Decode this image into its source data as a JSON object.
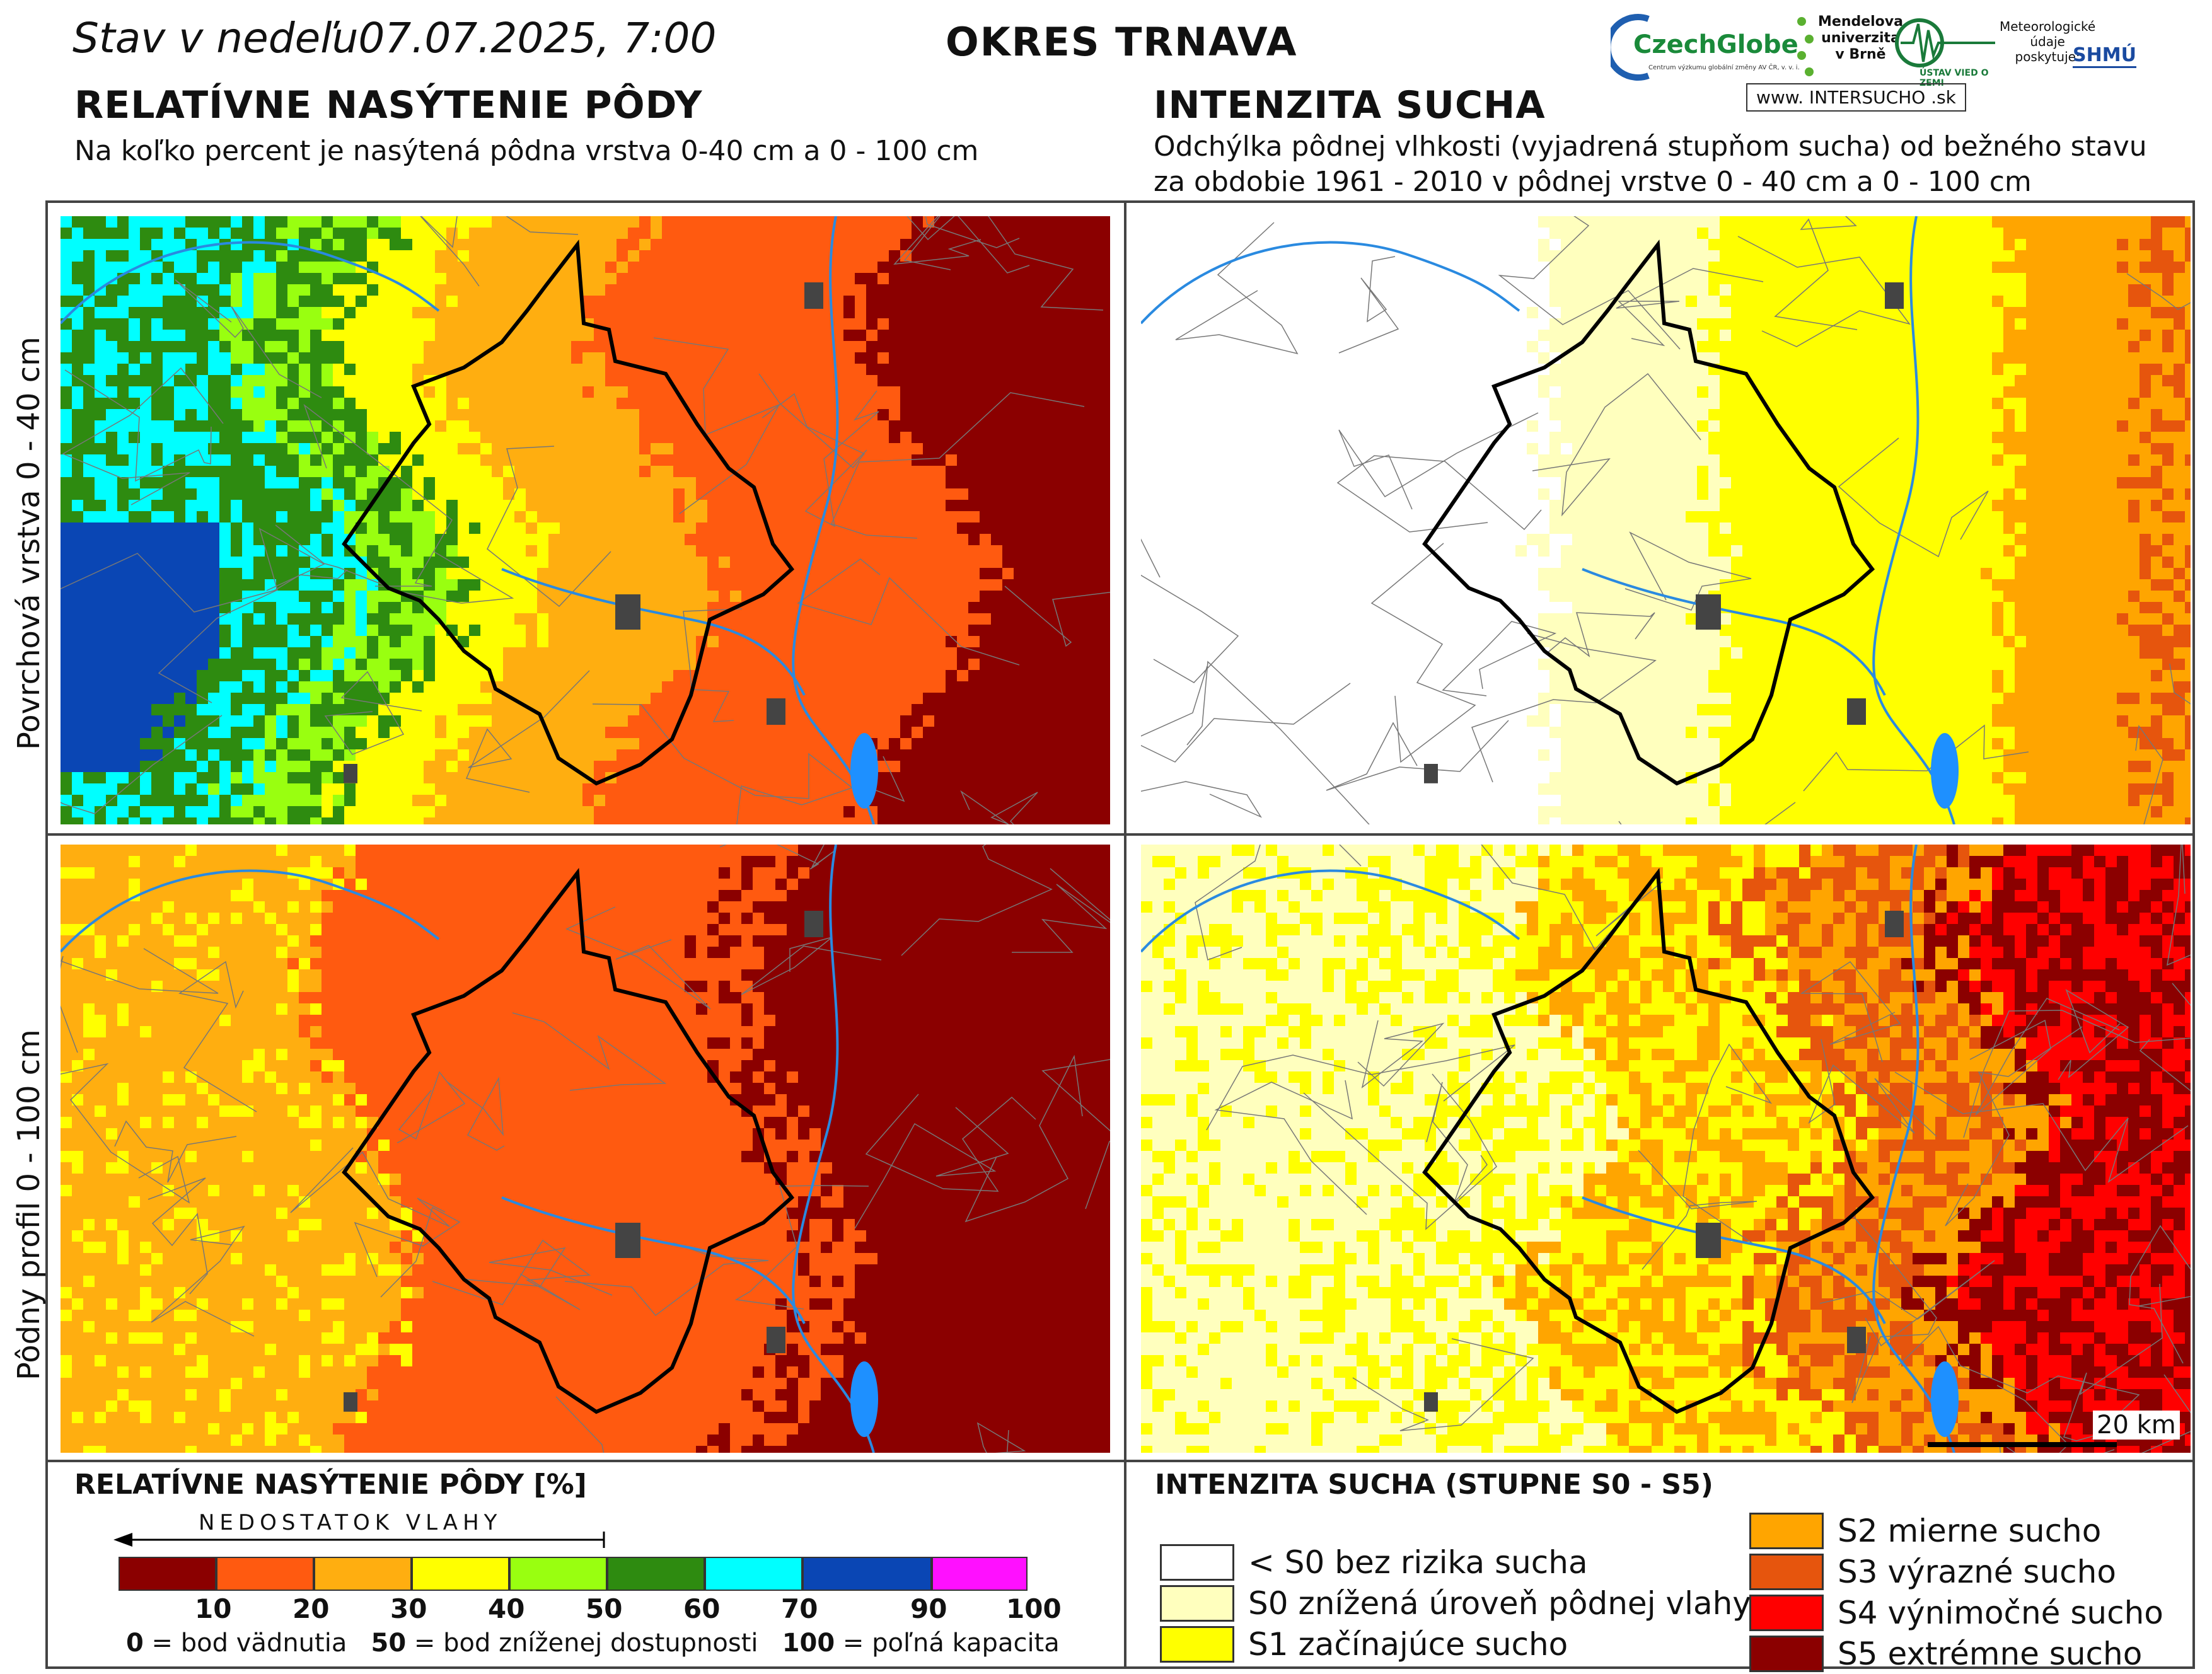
{
  "header": {
    "date_text": "Stav v nedeľu",
    "date_value": "07.07.2025, 7:00",
    "district": "OKRES  TRNAVA"
  },
  "logos": {
    "czechglobe": "CzechGlobe",
    "czechglobe_sub": "Centrum výzkumu globální změny AV ČR, v. v. i.",
    "mendel_1": "Mendelova",
    "mendel_2": "univerzita",
    "mendel_3": "v Brně",
    "uvz": "ÚSTAV VIED O ZEMI",
    "shmu_note_1": "Meteorologické",
    "shmu_note_2": "údaje",
    "shmu_note_3": "poskytuje:",
    "shmu": "SHMÚ",
    "intersucho": "www. INTERSUCHO .sk"
  },
  "left_panel": {
    "title": "RELATÍVNE NASÝTENIE PÔDY",
    "subtitle": "Na koľko percent je nasýtená pôdna vrstva 0-40 cm a 0 - 100 cm"
  },
  "right_panel": {
    "title": "INTENZITA SUCHA",
    "subtitle_1": "Odchýlka pôdnej vlhkosti (vyjadrená stupňom sucha) od bežného stavu",
    "subtitle_2": "za obdobie 1961 - 2010 v pôdnej vrstve 0 - 40 cm a 0 - 100 cm"
  },
  "row_labels": {
    "top": "Povrchová vrstva 0 - 40 cm",
    "bottom": "Pôdny profil 0 - 100 cm"
  },
  "scale_bar": "20 km",
  "saturation_legend": {
    "title": "RELATÍVNE NASÝTENIE PÔDY [%]",
    "arrow_text": "NEDOSTATOK VLAHY",
    "classes": [
      {
        "upper": "10",
        "color": "#8b0000"
      },
      {
        "upper": "20",
        "color": "#ff5a10"
      },
      {
        "upper": "30",
        "color": "#ffae10"
      },
      {
        "upper": "40",
        "color": "#ffff00"
      },
      {
        "upper": "50",
        "color": "#99ff10"
      },
      {
        "upper": "60",
        "color": "#2e8b10"
      },
      {
        "upper": "70",
        "color": "#00ffff"
      },
      {
        "upper": "90",
        "color": "#0a46b4"
      },
      {
        "upper": "100",
        "color": "#ff10ff"
      }
    ],
    "note_0": "0",
    "note_0_text": " = bod vädnutia",
    "note_50": "50",
    "note_50_text": " = bod zníženej dostupnosti",
    "note_100": "100",
    "note_100_text": " = poľná kapacita"
  },
  "drought_legend": {
    "title": "INTENZITA SUCHA (STUPNE S0 - S5)",
    "items": [
      {
        "label": "< S0 bez rizika sucha",
        "color": "#ffffff"
      },
      {
        "label": "S0 znížená úroveň pôdnej vlahy",
        "color": "#ffffbe"
      },
      {
        "label": "S1 začínajúce sucho",
        "color": "#ffff00"
      },
      {
        "label": "S2 mierne sucho",
        "color": "#ffa500"
      },
      {
        "label": "S3 výrazné sucho",
        "color": "#e6550d"
      },
      {
        "label": "S4 výnimočné sucho",
        "color": "#ff0000"
      },
      {
        "label": "S5 extrémne sucho",
        "color": "#8b0000"
      }
    ]
  }
}
